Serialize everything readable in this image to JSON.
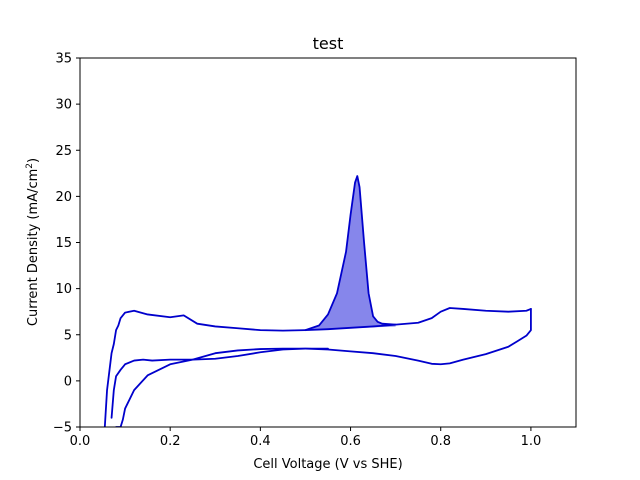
{
  "chart_data": {
    "type": "line",
    "title": "test",
    "xlabel": "Cell Voltage (V vs SHE)",
    "ylabel_main": "Current Density (mA/cm",
    "ylabel_sup": "2",
    "ylabel_close": ")",
    "xlim": [
      0.0,
      1.1
    ],
    "ylim": [
      -5,
      35
    ],
    "xticks": [
      "0.0",
      "0.2",
      "0.4",
      "0.6",
      "0.8",
      "1.0"
    ],
    "xtick_values": [
      0.0,
      0.2,
      0.4,
      0.6,
      0.8,
      1.0
    ],
    "yticks": [
      "−5",
      "0",
      "5",
      "10",
      "15",
      "20",
      "25",
      "30",
      "35"
    ],
    "ytick_values": [
      -5,
      0,
      5,
      10,
      15,
      20,
      25,
      30,
      35
    ],
    "grid": false,
    "colors": {
      "line": "#0000cc",
      "fill": "#6b6be6",
      "fill_opacity": 0.82
    },
    "series": [
      {
        "role": "anodic-sweep",
        "x": [
          0.055,
          0.06,
          0.065,
          0.07,
          0.075,
          0.08,
          0.085,
          0.09,
          0.1,
          0.12,
          0.15,
          0.2,
          0.23,
          0.26,
          0.3,
          0.35,
          0.4,
          0.45,
          0.5,
          0.55,
          0.6,
          0.65,
          0.7,
          0.75,
          0.78,
          0.8,
          0.82,
          0.85,
          0.9,
          0.95,
          0.99,
          1.0
        ],
        "y": [
          -5,
          -1,
          1,
          3,
          4,
          5.5,
          6,
          6.8,
          7.4,
          7.6,
          7.2,
          6.9,
          7.1,
          6.2,
          5.9,
          5.7,
          5.5,
          5.45,
          5.5,
          5.6,
          5.75,
          5.9,
          6.1,
          6.3,
          6.8,
          7.5,
          7.9,
          7.8,
          7.6,
          7.5,
          7.6,
          7.8
        ]
      },
      {
        "role": "cathodic-sweep",
        "x": [
          1.0,
          1.0,
          0.99,
          0.97,
          0.95,
          0.9,
          0.85,
          0.82,
          0.8,
          0.78,
          0.75,
          0.7,
          0.65,
          0.6,
          0.55,
          0.5,
          0.45,
          0.4,
          0.35,
          0.3,
          0.25,
          0.2,
          0.15,
          0.12,
          0.1,
          0.095,
          0.09,
          0.085,
          0.08
        ],
        "y": [
          7.8,
          5.5,
          4.9,
          4.3,
          3.7,
          2.9,
          2.3,
          1.9,
          1.8,
          1.85,
          2.2,
          2.7,
          3.0,
          3.2,
          3.4,
          3.5,
          3.5,
          3.45,
          3.3,
          3.0,
          2.3,
          1.8,
          0.6,
          -1.0,
          -3.0,
          -4.2,
          -5,
          -5,
          -5
        ]
      },
      {
        "role": "inner-cycle",
        "x": [
          0.07,
          0.075,
          0.08,
          0.09,
          0.1,
          0.12,
          0.14,
          0.16,
          0.2,
          0.25,
          0.3,
          0.35,
          0.4,
          0.45,
          0.5,
          0.55
        ],
        "y": [
          -4,
          -1,
          0.5,
          1.2,
          1.8,
          2.2,
          2.3,
          2.2,
          2.3,
          2.3,
          2.4,
          2.7,
          3.1,
          3.4,
          3.5,
          3.5
        ]
      },
      {
        "role": "oxidation-peak",
        "x": [
          0.5,
          0.53,
          0.55,
          0.57,
          0.59,
          0.6,
          0.61,
          0.615,
          0.62,
          0.63,
          0.64,
          0.65,
          0.66,
          0.67,
          0.7
        ],
        "y": [
          5.5,
          6.0,
          7.2,
          9.5,
          14.0,
          18.0,
          21.5,
          22.2,
          21.0,
          15.0,
          9.5,
          7.0,
          6.4,
          6.2,
          6.1
        ]
      }
    ],
    "shaded_region": {
      "series_role": "oxidation-peak",
      "baseline_x": [
        0.5,
        0.7
      ],
      "baseline_y": [
        5.5,
        5.9
      ]
    }
  }
}
